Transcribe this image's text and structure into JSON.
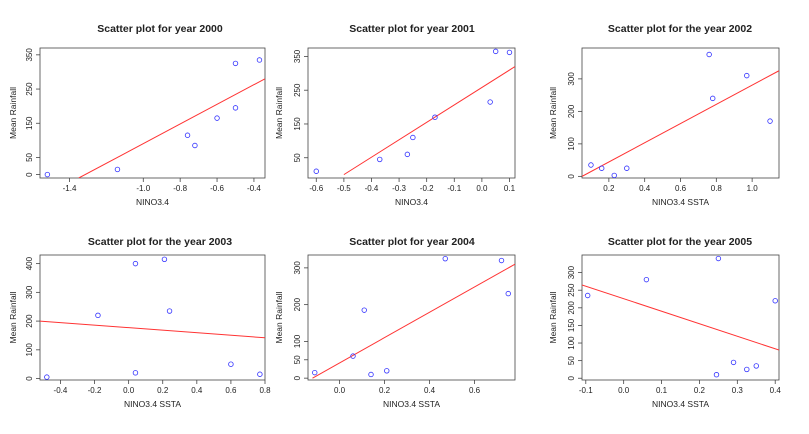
{
  "chart_data": [
    {
      "type": "scatter",
      "title": "Scatter plot for year 2000",
      "xlabel": "NINO3.4",
      "ylabel": "Mean Rainfall",
      "xlim": [
        -1.56,
        -0.34
      ],
      "ylim": [
        -10,
        370
      ],
      "xticks": [
        -1.4,
        -1.0,
        -0.8,
        -0.6,
        -0.4
      ],
      "xtick_labels": [
        "-1.4",
        "-1.0",
        "-0.8",
        "-0.6",
        "-0.4"
      ],
      "yticks": [
        0,
        50,
        150,
        250,
        350
      ],
      "ytick_labels": [
        "0",
        "50",
        "150",
        "250",
        "350"
      ],
      "points": {
        "x": [
          -1.52,
          -1.14,
          -0.76,
          -0.72,
          -0.6,
          -0.5,
          -0.5,
          -0.37
        ],
        "y": [
          0,
          15,
          115,
          85,
          165,
          195,
          325,
          335
        ]
      },
      "trendline": {
        "x": [
          -1.35,
          -0.34
        ],
        "y": [
          -10,
          280
        ]
      },
      "grid": false,
      "legend": "none"
    },
    {
      "type": "scatter",
      "title": "Scatter plot for year 2001",
      "xlabel": "NINO3.4",
      "ylabel": "Mean Rainfall",
      "xlim": [
        -0.63,
        0.12
      ],
      "ylim": [
        -10,
        375
      ],
      "xticks": [
        -0.6,
        -0.5,
        -0.4,
        -0.3,
        -0.2,
        -0.1,
        0.0,
        0.1
      ],
      "xtick_labels": [
        "-0.6",
        "-0.5",
        "-0.4",
        "-0.3",
        "-0.2",
        "-0.1",
        "0.0",
        "0.1"
      ],
      "yticks": [
        50,
        150,
        250,
        350
      ],
      "ytick_labels": [
        "50",
        "150",
        "250",
        "350"
      ],
      "points": {
        "x": [
          -0.6,
          -0.37,
          -0.27,
          -0.25,
          -0.17,
          0.03,
          0.05,
          0.1
        ],
        "y": [
          10,
          45,
          60,
          110,
          170,
          215,
          365,
          362
        ]
      },
      "trendline": {
        "x": [
          -0.5,
          0.12
        ],
        "y": [
          0,
          320
        ]
      },
      "grid": false,
      "legend": "none"
    },
    {
      "type": "scatter",
      "title": "Scatter plot for the year 2002",
      "xlabel": "NINO3.4 SSTA",
      "ylabel": "Mean Rainfall",
      "xlim": [
        0.05,
        1.15
      ],
      "ylim": [
        -5,
        395
      ],
      "xticks": [
        0.2,
        0.4,
        0.6,
        0.8,
        1.0
      ],
      "xtick_labels": [
        "0.2",
        "0.4",
        "0.6",
        "0.8",
        "1.0"
      ],
      "yticks": [
        0,
        100,
        200,
        300
      ],
      "ytick_labels": [
        "0",
        "100",
        "200",
        "300"
      ],
      "points": {
        "x": [
          0.1,
          0.16,
          0.23,
          0.3,
          0.76,
          0.78,
          0.97,
          1.1
        ],
        "y": [
          35,
          25,
          3,
          25,
          375,
          240,
          310,
          170
        ]
      },
      "trendline": {
        "x": [
          0.05,
          1.15
        ],
        "y": [
          0,
          325
        ]
      },
      "grid": false,
      "legend": "none"
    },
    {
      "type": "scatter",
      "title": "Scatter plot for the year 2003",
      "xlabel": "NINO3.4 SSTA",
      "ylabel": "Mean Rainfall",
      "xlim": [
        -0.52,
        0.8
      ],
      "ylim": [
        -5,
        430
      ],
      "xticks": [
        -0.4,
        -0.2,
        0.0,
        0.2,
        0.4,
        0.6,
        0.8
      ],
      "xtick_labels": [
        "-0.4",
        "-0.2",
        "0.0",
        "0.2",
        "0.4",
        "0.6",
        "0.8"
      ],
      "yticks": [
        0,
        100,
        200,
        300,
        400
      ],
      "ytick_labels": [
        "0",
        "100",
        "200",
        "300",
        "400"
      ],
      "points": {
        "x": [
          -0.48,
          -0.18,
          0.04,
          0.04,
          0.21,
          0.24,
          0.6,
          0.77
        ],
        "y": [
          5,
          220,
          400,
          20,
          415,
          235,
          50,
          15
        ]
      },
      "trendline": {
        "x": [
          -0.52,
          0.8
        ],
        "y": [
          200,
          142
        ]
      },
      "grid": false,
      "legend": "none"
    },
    {
      "type": "scatter",
      "title": "Scatter plot for year 2004",
      "xlabel": "NINO3.4 SSTA",
      "ylabel": "Mean Rainfall",
      "xlim": [
        -0.14,
        0.78
      ],
      "ylim": [
        -5,
        335
      ],
      "xticks": [
        0.0,
        0.2,
        0.4,
        0.6
      ],
      "xtick_labels": [
        "0.0",
        "0.2",
        "0.4",
        "0.6"
      ],
      "yticks": [
        0,
        50,
        100,
        200,
        300
      ],
      "ytick_labels": [
        "0",
        "50",
        "100",
        "200",
        "300"
      ],
      "points": {
        "x": [
          -0.11,
          0.06,
          0.11,
          0.14,
          0.21,
          0.47,
          0.72,
          0.75
        ],
        "y": [
          15,
          60,
          185,
          10,
          20,
          325,
          320,
          230
        ]
      },
      "trendline": {
        "x": [
          -0.12,
          0.78
        ],
        "y": [
          0,
          310
        ]
      },
      "grid": false,
      "legend": "none"
    },
    {
      "type": "scatter",
      "title": "Scatter plot for the year 2005",
      "xlabel": "NINO3.4 SSTA",
      "ylabel": "Mean Rainfall",
      "xlim": [
        -0.11,
        0.41
      ],
      "ylim": [
        -5,
        350
      ],
      "xticks": [
        -0.1,
        0.0,
        0.1,
        0.2,
        0.3,
        0.4
      ],
      "xtick_labels": [
        "-0.1",
        "0.0",
        "0.1",
        "0.2",
        "0.3",
        "0.4"
      ],
      "yticks": [
        0,
        50,
        100,
        150,
        200,
        250,
        300
      ],
      "ytick_labels": [
        "0",
        "50",
        "100",
        "150",
        "200",
        "250",
        "300"
      ],
      "points": {
        "x": [
          -0.095,
          0.06,
          0.245,
          0.25,
          0.29,
          0.325,
          0.35,
          0.4
        ],
        "y": [
          235,
          280,
          10,
          340,
          45,
          25,
          35,
          220
        ]
      },
      "trendline": {
        "x": [
          -0.11,
          0.41
        ],
        "y": [
          265,
          80
        ]
      },
      "grid": false,
      "legend": "none"
    }
  ],
  "colors": {
    "points": "#3333ff",
    "trendline": "#ff3333",
    "axes": "#444444",
    "text": "#222222"
  }
}
